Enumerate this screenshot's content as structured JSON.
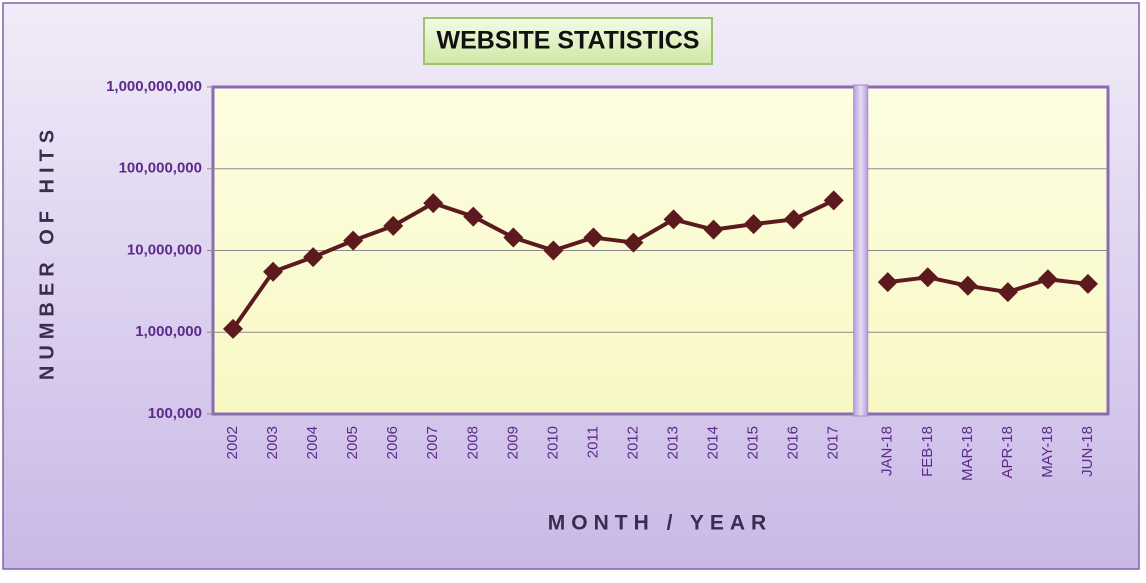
{
  "chart_data": {
    "type": "line",
    "title": "WEBSITE STATISTICS",
    "x_label": "MONTH / YEAR",
    "y_label": "NUMBER OF HITS",
    "log_scale": true,
    "grid": true,
    "color": "#5c1a1f",
    "ylim": [
      100000,
      1000000000
    ],
    "yticks": [
      {
        "value": 100000,
        "label": "100,000"
      },
      {
        "value": 1000000,
        "label": "1,000,000"
      },
      {
        "value": 10000000,
        "label": "10,000,000"
      },
      {
        "value": 100000000,
        "label": "100,000,000"
      },
      {
        "value": 1000000000,
        "label": "1,000,000,000"
      }
    ],
    "groups": [
      {
        "categories": [
          "2002",
          "2003",
          "2004",
          "2005",
          "2006",
          "2007",
          "2008",
          "2009",
          "2010",
          "2011",
          "2012",
          "2013",
          "2014",
          "2015",
          "2016",
          "2017"
        ],
        "values": [
          1100000,
          5500000,
          8300000,
          13200000,
          20000000,
          38000000,
          26000000,
          14400000,
          10000000,
          14400000,
          12500000,
          24000000,
          18000000,
          21000000,
          24000000,
          41000000
        ]
      },
      {
        "categories": [
          "JAN-18",
          "FEB-18",
          "MAR-18",
          "APR-18",
          "MAY-18",
          "JUN-18"
        ],
        "values": [
          4100000,
          4700000,
          3700000,
          3100000,
          4450000,
          3900000
        ]
      }
    ]
  }
}
